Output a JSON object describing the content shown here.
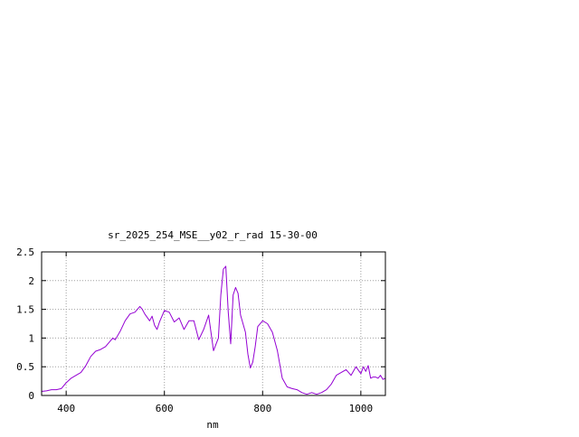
{
  "chart_data": {
    "type": "line",
    "title": "sr_2025_254_MSE__y02_r_rad 15-30-00",
    "xlabel": "nm",
    "ylabel": "",
    "xlim": [
      350,
      1050
    ],
    "ylim": [
      0,
      2.5
    ],
    "x_ticks": [
      400,
      600,
      800,
      1000
    ],
    "x_tick_labels": [
      "400",
      "600",
      "800",
      "1000"
    ],
    "y_ticks": [
      0,
      0.5,
      1,
      1.5,
      2,
      2.5
    ],
    "y_tick_labels": [
      "0",
      "0.5",
      "1",
      "1.5",
      "2",
      "2.5"
    ],
    "grid": true,
    "legend": "none",
    "series": [
      {
        "name": "",
        "color": "#9400d3",
        "x": [
          350,
          360,
          370,
          380,
          390,
          400,
          410,
          420,
          430,
          440,
          450,
          460,
          470,
          480,
          490,
          495,
          500,
          510,
          520,
          530,
          540,
          550,
          555,
          560,
          570,
          575,
          580,
          585,
          590,
          600,
          610,
          620,
          630,
          640,
          650,
          660,
          670,
          680,
          690,
          700,
          710,
          715,
          720,
          725,
          730,
          735,
          740,
          745,
          750,
          755,
          760,
          765,
          770,
          775,
          780,
          785,
          790,
          800,
          810,
          820,
          830,
          840,
          850,
          860,
          870,
          880,
          890,
          900,
          910,
          920,
          930,
          940,
          950,
          960,
          970,
          980,
          990,
          1000,
          1005,
          1010,
          1015,
          1020,
          1025,
          1030,
          1035,
          1040,
          1045,
          1050
        ],
        "y": [
          0.07,
          0.08,
          0.1,
          0.1,
          0.12,
          0.22,
          0.3,
          0.35,
          0.4,
          0.52,
          0.68,
          0.77,
          0.8,
          0.85,
          0.95,
          1.0,
          0.97,
          1.12,
          1.3,
          1.42,
          1.45,
          1.55,
          1.5,
          1.42,
          1.3,
          1.38,
          1.22,
          1.15,
          1.28,
          1.48,
          1.45,
          1.28,
          1.35,
          1.15,
          1.3,
          1.3,
          0.97,
          1.15,
          1.4,
          0.78,
          1.0,
          1.75,
          2.2,
          2.25,
          1.45,
          0.9,
          1.75,
          1.88,
          1.78,
          1.4,
          1.25,
          1.1,
          0.72,
          0.48,
          0.58,
          0.85,
          1.2,
          1.3,
          1.25,
          1.1,
          0.78,
          0.3,
          0.15,
          0.12,
          0.1,
          0.05,
          0.02,
          0.05,
          0.02,
          0.05,
          0.1,
          0.2,
          0.35,
          0.4,
          0.45,
          0.35,
          0.5,
          0.38,
          0.5,
          0.42,
          0.52,
          0.3,
          0.32,
          0.32,
          0.3,
          0.35,
          0.28,
          0.3
        ]
      }
    ]
  }
}
